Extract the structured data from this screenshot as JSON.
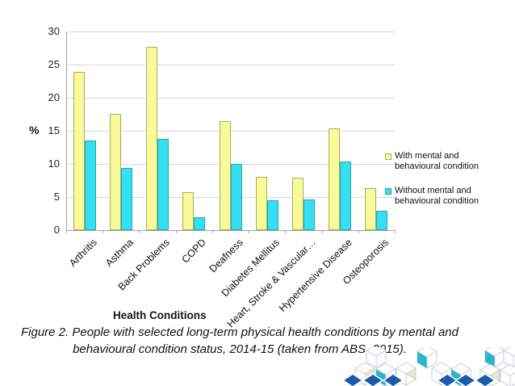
{
  "chart_data": {
    "type": "bar",
    "title": "",
    "categories": [
      "Arthritis",
      "Asthma",
      "Back Problems",
      "COPD",
      "Deafness",
      "Diabetes Mellitus",
      "Heart, Stroke & Vascular…",
      "Hypertensive Disease",
      "Osteoporosis"
    ],
    "series": [
      {
        "name": "With mental and behavioural condition",
        "fill": "#FAFA9B",
        "border": "#9CB456",
        "values": [
          23.9,
          17.6,
          27.7,
          5.7,
          16.5,
          8.1,
          7.9,
          15.4,
          6.3
        ]
      },
      {
        "name": "Without mental and behavioural condition",
        "fill": "#35DFF2",
        "border": "#2BA3B4",
        "values": [
          13.5,
          9.4,
          13.8,
          2.0,
          10.0,
          4.5,
          4.6,
          10.4,
          2.9
        ]
      }
    ],
    "xlabel": "Health Conditions",
    "ylabel": "%",
    "ylim": [
      0,
      30
    ],
    "ytick_step": 5,
    "grid": true,
    "legend_position": "right"
  },
  "caption": {
    "line1": "Figure 2.  People with selected long-term physical health conditions by mental and",
    "line2": "behavioural condition status, 2014-15 (taken from ABS, 2015)."
  },
  "decoration": {
    "description": "isometric-cube-cluster",
    "colors": {
      "teal": "#2BB5C9",
      "dark_blue": "#1A5CA8",
      "pale_yellow": "#E6E9C6",
      "cube_outline": "#C6CBD4"
    }
  }
}
